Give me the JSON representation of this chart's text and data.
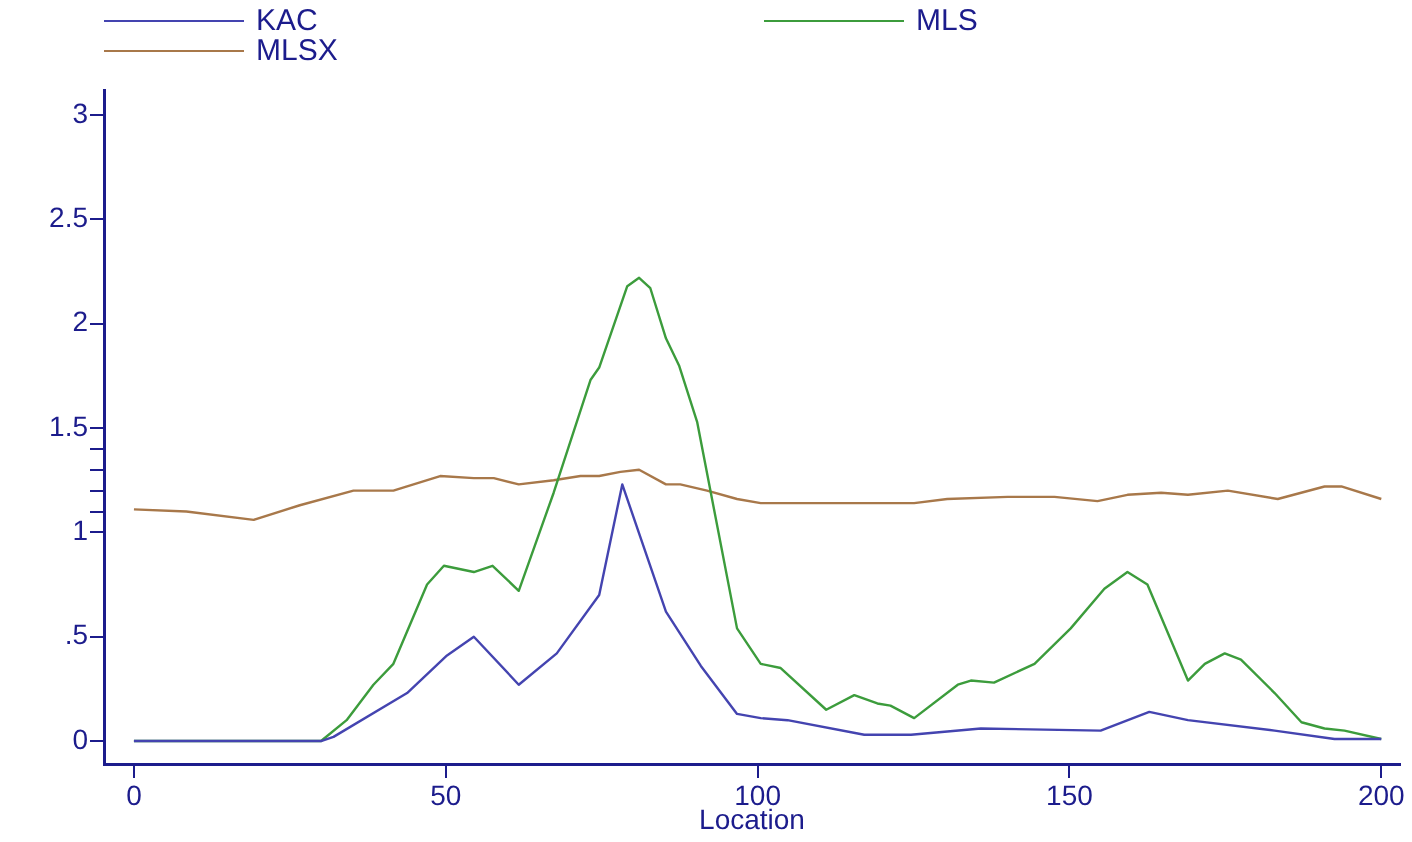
{
  "chart_data": {
    "type": "line",
    "xlabel": "Location",
    "xlim": [
      -4.8,
      203
    ],
    "xticks": [
      0,
      50,
      100,
      150,
      200
    ],
    "ylim": [
      -0.11,
      3.12
    ],
    "yticks": [
      0,
      {
        "value": 0.5,
        "label": ".5"
      },
      1,
      {
        "value": 1.1,
        "label": null
      },
      {
        "value": 1.2,
        "label": null
      },
      {
        "value": 1.3,
        "label": null
      },
      {
        "value": 1.4,
        "label": null
      },
      1.5,
      2,
      2.5,
      3
    ],
    "grid": false,
    "legend": "top",
    "marker": "none",
    "line_style": "solid",
    "series": [
      {
        "name": "KAC",
        "color": "#4444b0",
        "x": [
          0,
          30,
          32,
          43.8,
          50.2,
          54.5,
          61.7,
          67.8,
          74.6,
          78.3,
          85.3,
          90.9,
          96.7,
          100.5,
          104.8,
          117.1,
          124.6,
          135.8,
          155,
          162.8,
          169,
          182.9,
          192.5,
          200
        ],
        "values": [
          0,
          0,
          0.02,
          0.23,
          0.41,
          0.5,
          0.27,
          0.42,
          0.7,
          1.23,
          0.62,
          0.36,
          0.13,
          0.11,
          0.1,
          0.03,
          0.03,
          0.06,
          0.05,
          0.14,
          0.1,
          0.05,
          0.01,
          0.01
        ]
      },
      {
        "name": "MLS",
        "color": "#3c9c3c",
        "x": [
          0,
          30,
          34.1,
          38.4,
          41.6,
          47,
          49.7,
          54.5,
          57.5,
          61.7,
          67.3,
          73.2,
          74.6,
          79.1,
          81,
          82.8,
          85.3,
          87.4,
          90.3,
          96.7,
          100.5,
          103.7,
          111,
          115.5,
          119.2,
          121.3,
          125.1,
          132.1,
          134.2,
          137.9,
          144.4,
          150.2,
          155.6,
          159.3,
          162.5,
          169,
          171.7,
          174.9,
          177.5,
          182.9,
          187.2,
          190.9,
          194.1,
          200
        ],
        "values": [
          0,
          0,
          0.1,
          0.27,
          0.37,
          0.75,
          0.84,
          0.81,
          0.84,
          0.72,
          1.19,
          1.73,
          1.79,
          2.18,
          2.22,
          2.17,
          1.93,
          1.8,
          1.53,
          0.54,
          0.37,
          0.35,
          0.15,
          0.22,
          0.18,
          0.17,
          0.11,
          0.27,
          0.29,
          0.28,
          0.37,
          0.54,
          0.73,
          0.81,
          0.75,
          0.29,
          0.37,
          0.42,
          0.39,
          0.23,
          0.09,
          0.06,
          0.05,
          0.01
        ]
      },
      {
        "name": "MLSX",
        "color": "#a8784a",
        "x": [
          0,
          8.4,
          19.2,
          26.6,
          35.2,
          41.6,
          49.1,
          54.5,
          57.7,
          61.7,
          67.3,
          71.6,
          74.6,
          78,
          81,
          85.3,
          87.6,
          91.9,
          96.7,
          100.5,
          111.2,
          118.7,
          125.1,
          130.4,
          140.1,
          147.6,
          154.5,
          159.3,
          164.7,
          169,
          175.4,
          183.4,
          190.9,
          193.6,
          200
        ],
        "values": [
          1.11,
          1.1,
          1.06,
          1.13,
          1.2,
          1.2,
          1.27,
          1.26,
          1.26,
          1.23,
          1.25,
          1.27,
          1.27,
          1.29,
          1.3,
          1.23,
          1.23,
          1.2,
          1.16,
          1.14,
          1.14,
          1.14,
          1.14,
          1.16,
          1.17,
          1.17,
          1.15,
          1.18,
          1.19,
          1.18,
          1.2,
          1.16,
          1.22,
          1.22,
          1.16
        ]
      }
    ]
  }
}
